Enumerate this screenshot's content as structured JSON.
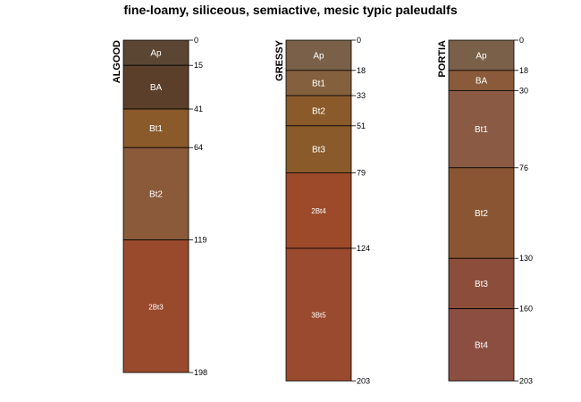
{
  "title": "fine-loamy, siliceous, semiactive, mesic typic paleudalfs",
  "chart_data": {
    "type": "soil-profile",
    "title": "fine-loamy, siliceous, semiactive, mesic typic paleudalfs",
    "depth_units": "cm",
    "profiles": [
      {
        "name": "ALGOOD",
        "horizons": [
          {
            "name": "Ap",
            "top": 0,
            "bottom": 15,
            "color": "#5a4632"
          },
          {
            "name": "BA",
            "top": 15,
            "bottom": 41,
            "color": "#5c3f2a"
          },
          {
            "name": "Bt1",
            "top": 41,
            "bottom": 64,
            "color": "#8a5a2b"
          },
          {
            "name": "Bt2",
            "top": 64,
            "bottom": 119,
            "color": "#8a5a3a"
          },
          {
            "name": "2Bt3",
            "top": 119,
            "bottom": 198,
            "color": "#9a4a2c"
          }
        ],
        "depth_labels": [
          "0",
          "15",
          "41",
          "64",
          "119",
          "198"
        ]
      },
      {
        "name": "GRESSY",
        "horizons": [
          {
            "name": "Ap",
            "top": 0,
            "bottom": 18,
            "color": "#7a6048"
          },
          {
            "name": "Bt1",
            "top": 18,
            "bottom": 33,
            "color": "#85603f"
          },
          {
            "name": "Bt2",
            "top": 33,
            "bottom": 51,
            "color": "#8a5a2b"
          },
          {
            "name": "Bt3",
            "top": 51,
            "bottom": 79,
            "color": "#8a5a2b"
          },
          {
            "name": "2Bt4",
            "top": 79,
            "bottom": 124,
            "color": "#9c4a2a"
          },
          {
            "name": "3Bt5",
            "top": 124,
            "bottom": 203,
            "color": "#9a4a2e"
          }
        ],
        "depth_labels": [
          "0",
          "18",
          "33",
          "51",
          "79",
          "124",
          "203"
        ]
      },
      {
        "name": "PORTIA",
        "horizons": [
          {
            "name": "Ap",
            "top": 0,
            "bottom": 18,
            "color": "#7a6048"
          },
          {
            "name": "BA",
            "top": 18,
            "bottom": 30,
            "color": "#8a5a3a"
          },
          {
            "name": "Bt1",
            "top": 30,
            "bottom": 76,
            "color": "#8a5a45"
          },
          {
            "name": "Bt2",
            "top": 76,
            "bottom": 130,
            "color": "#8a5532"
          },
          {
            "name": "Bt3",
            "top": 130,
            "bottom": 160,
            "color": "#8c4e3a"
          },
          {
            "name": "Bt4",
            "top": 160,
            "bottom": 203,
            "color": "#8c4e40"
          }
        ],
        "depth_labels": [
          "0",
          "18",
          "30",
          "76",
          "130",
          "160",
          "203"
        ]
      }
    ]
  }
}
